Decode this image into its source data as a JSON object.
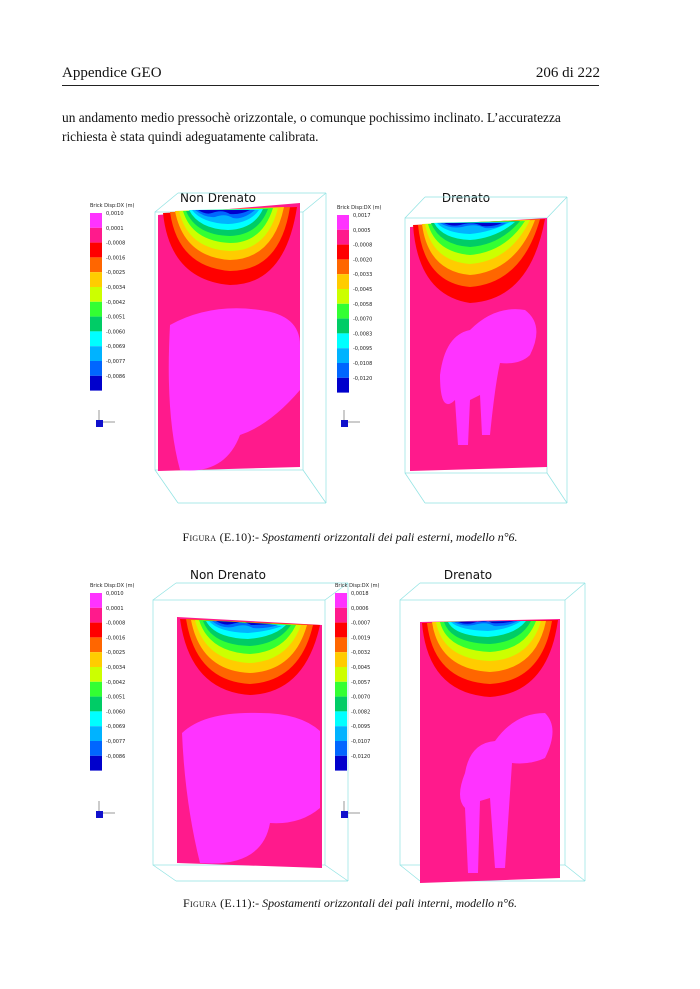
{
  "header": {
    "left": "Appendice GEO",
    "right": "206 di 222"
  },
  "body_text": {
    "line1": "un andamento medio pressochè orizzontale, o comunque pochissimo inclinato. L’accuratezza",
    "line2": "richiesta è stata quindi adeguatamente calibrata."
  },
  "colors": {
    "scale": [
      "#ff33ff",
      "#ff1a8c",
      "#ff0000",
      "#ff6600",
      "#ffcc00",
      "#ccff00",
      "#33ff33",
      "#00cc66",
      "#00ffff",
      "#00b3ff",
      "#0066ff",
      "#0000cc"
    ],
    "box_lines": "#7fe6e6"
  },
  "figures": [
    {
      "caption_label": "Figura (E.10)",
      "caption_sep": ":-",
      "caption_title": " Spostamenti orizzontali dei pali esterni, modello n°6.",
      "panels": [
        {
          "title": "Non Drenato",
          "legend_title": "Brick Disp:DX (m)",
          "legend_values": [
            "0,0010",
            "0,0001",
            "-0,0008",
            "-0,0016",
            "-0,0025",
            "-0,0034",
            "-0,0042",
            "-0,0051",
            "-0,0060",
            "-0,0069",
            "-0,0077",
            "-0,0086"
          ]
        },
        {
          "title": "Drenato",
          "legend_title": "Brick Disp:DX (m)",
          "legend_values": [
            "0,0017",
            "0,0005",
            "-0,0008",
            "-0,0020",
            "-0,0033",
            "-0,0045",
            "-0,0058",
            "-0,0070",
            "-0,0083",
            "-0,0095",
            "-0,0108",
            "-0,0120"
          ]
        }
      ]
    },
    {
      "caption_label": "Figura (E.11)",
      "caption_sep": ":-",
      "caption_title": " Spostamenti orizzontali dei pali interni, modello n°6.",
      "panels": [
        {
          "title": "Non Drenato",
          "legend_title": "Brick Disp:DX (m)",
          "legend_values": [
            "0,0010",
            "0,0001",
            "-0,0008",
            "-0,0016",
            "-0,0025",
            "-0,0034",
            "-0,0042",
            "-0,0051",
            "-0,0060",
            "-0,0069",
            "-0,0077",
            "-0,0086"
          ]
        },
        {
          "title": "Drenato",
          "legend_title": "Brick Disp:DX (m)",
          "legend_values": [
            "0,0018",
            "0,0006",
            "-0,0007",
            "-0,0019",
            "-0,0032",
            "-0,0045",
            "-0,0057",
            "-0,0070",
            "-0,0082",
            "-0,0095",
            "-0,0107",
            "-0,0120"
          ]
        }
      ]
    }
  ]
}
